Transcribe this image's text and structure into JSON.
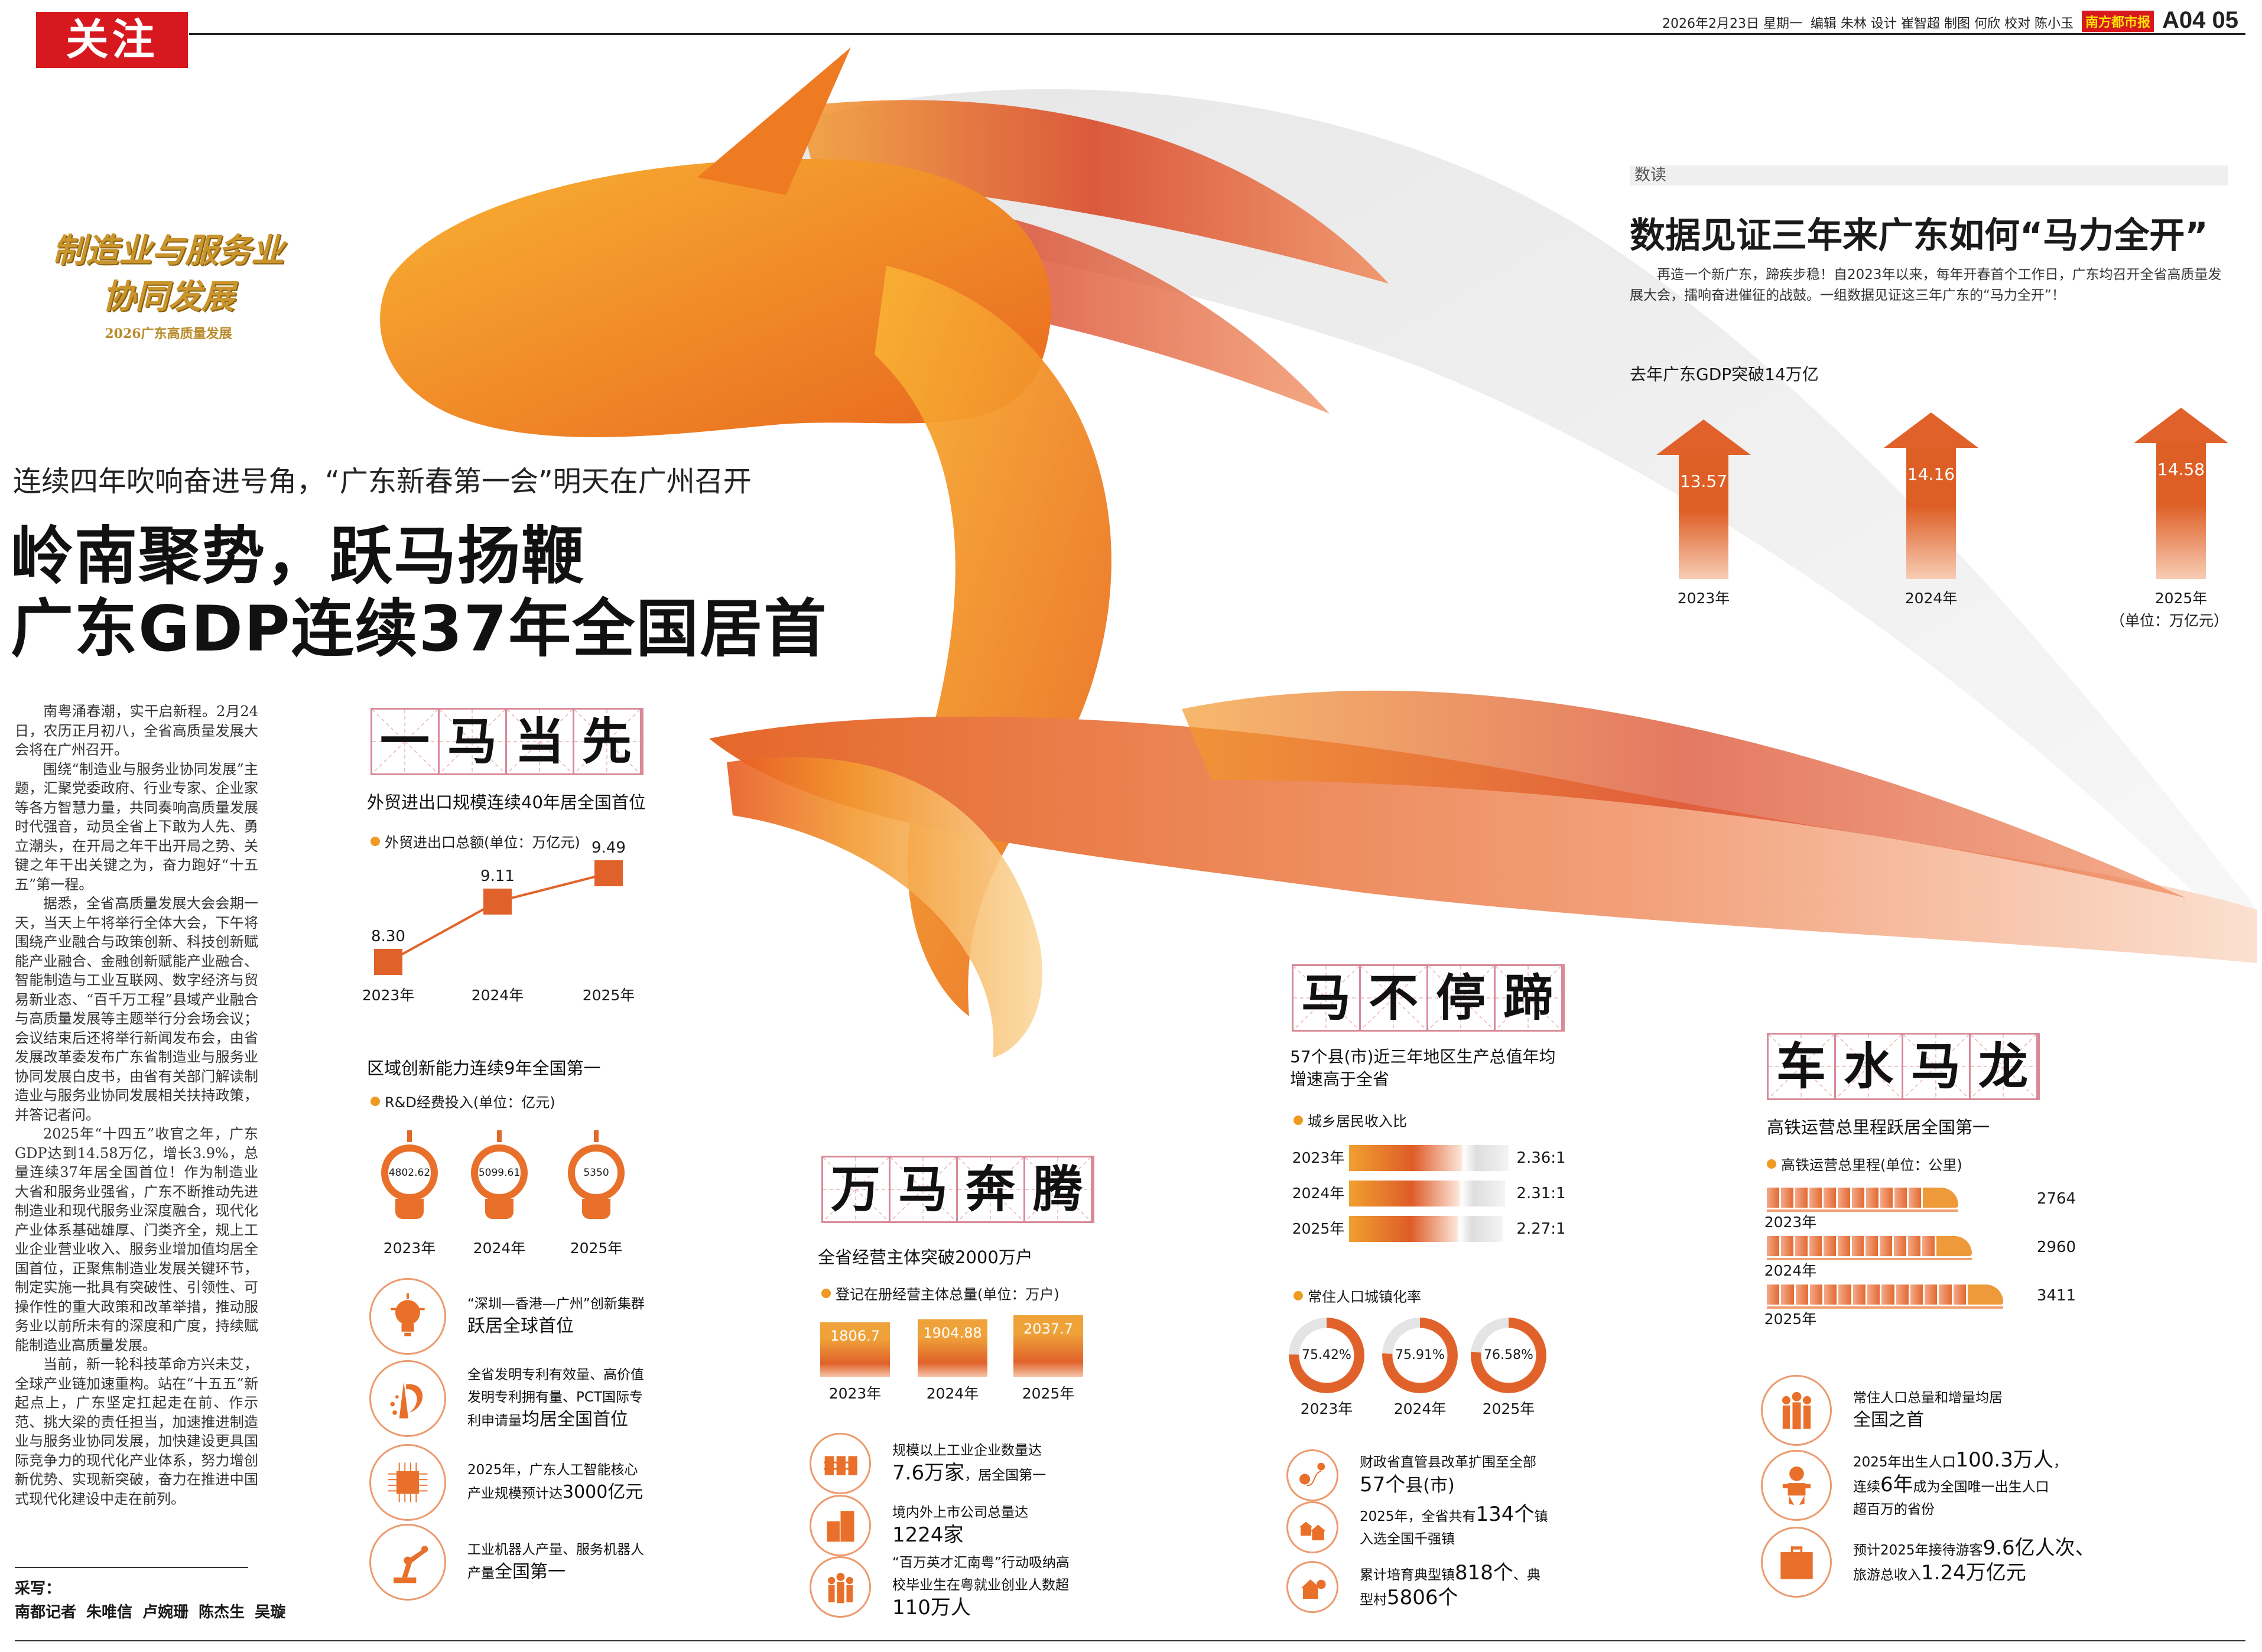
{
  "header": {
    "section_tag": "关注",
    "date": "2026年2月23日 星期一",
    "credits": "编辑 朱林 设计 崔智超 制图 何欣 校对 陈小玉",
    "paper_logo": "南方都市报",
    "page": "A04 05"
  },
  "logo": {
    "line1": "制造业与服务业",
    "line2": "协同发展",
    "sub": "2026广东高质量发展"
  },
  "headline": {
    "kicker": "连续四年吹响奋进号角，“广东新春第一会”明天在广州召开",
    "title1": "岭南聚势，跃马扬鞭",
    "title2": "广东GDP连续37年全国居首"
  },
  "article": {
    "paragraphs": [
      "南粤涌春潮，实干启新程。2月24日，农历正月初八，全省高质量发展大会将在广州召开。",
      "围绕“制造业与服务业协同发展”主题，汇聚党委政府、行业专家、企业家等各方智慧力量，共同奏响高质量发展时代强音，动员全省上下敢为人先、勇立潮头，在开局之年干出开局之势、关键之年干出关键之为，奋力跑好“十五五”第一程。",
      "据悉，全省高质量发展大会会期一天，当天上午将举行全体大会，下午将围绕产业融合与政策创新、科技创新赋能产业融合、金融创新赋能产业融合、智能制造与工业互联网、数字经济与贸易新业态、“百千万工程”县域产业融合与高质量发展等主题举行分会场会议；会议结束后还将举行新闻发布会，由省发展改革委发布广东省制造业与服务业协同发展白皮书，由省有关部门解读制造业与服务业协同发展相关扶持政策，并答记者问。",
      "2025年“十四五”收官之年，广东GDP达到14.58万亿，增长3.9%，总量连续37年居全国首位！作为制造业大省和服务业强省，广东不断推动先进制造业和现代服务业深度融合，现代化产业体系基础雄厚、门类齐全，规上工业企业营业收入、服务业增加值均居全国首位，正聚焦制造业发展关键环节，制定实施一批具有突破性、引领性、可操作性的重大政策和改革举措，推动服务业以前所未有的深度和广度，持续赋能制造业高质量发展。",
      "当前，新一轮科技革命方兴未艾，全球产业链加速重构。站在“十五五”新起点上，广东坚定扛起走在前、作示范、挑大梁的责任担当，加速推进制造业与服务业协同发展，加快建设更具国际竞争力的现代化产业体系，努力增创新优势、实现新突破，奋力在推进中国式现代化建设中走在前列。"
    ],
    "byline_label": "采写：",
    "byline": "南都记者 朱唯信 卢婉珊 陈杰生 吴璇"
  },
  "data_read": {
    "tag": "数读",
    "title": "数据见证三年来广东如何“马力全开”",
    "intro": "再造一个新广东，蹄疾步稳！自2023年以来，每年开春首个工作日，广东均召开全省高质量发展大会，擂响奋进催征的战鼓。一组数据见证这三年广东的“马力全开”！",
    "gdp": {
      "title": "去年广东GDP突破14万亿",
      "unit": "（单位：万亿元）",
      "items": [
        {
          "year": "2023年",
          "value": "13.57"
        },
        {
          "year": "2024年",
          "value": "14.16"
        },
        {
          "year": "2025年",
          "value": "14.58"
        }
      ]
    }
  },
  "colors": {
    "accent": "#e0622a",
    "orange": "#ee9a22",
    "red": "#d7191f",
    "grid": "#d88a98",
    "grey": "#dcdcdc"
  },
  "sections": {
    "yimadangxian": {
      "heading": "一马当先",
      "subtitle": "外贸进出口规模连续40年居全国首位",
      "legend": "外贸进出口总额(单位：万亿元)",
      "points": [
        {
          "year": "2023年",
          "value": "8.30"
        },
        {
          "year": "2024年",
          "value": "9.11"
        },
        {
          "year": "2025年",
          "value": "9.49"
        }
      ],
      "subtitle2": "区域创新能力连续9年全国第一",
      "legend2": "R&D经费投入(单位：亿元)",
      "bulbs": [
        {
          "year": "2023年",
          "value": "4802.62"
        },
        {
          "year": "2024年",
          "value": "5099.61"
        },
        {
          "year": "2025年",
          "value": "5350"
        }
      ],
      "list": [
        {
          "icon": "lightbulb",
          "segs": [
            {
              "t": "“深圳—香港—广州”创新集群\n",
              "s": "n"
            },
            {
              "t": "跃居全球首位",
              "s": "b"
            }
          ]
        },
        {
          "icon": "patent",
          "segs": [
            {
              "t": "全省发明专利有效量、高价值\n发明专利拥有量、PCT国际专\n利申请量",
              "s": "n"
            },
            {
              "t": "均居全国首位",
              "s": "b"
            }
          ]
        },
        {
          "icon": "ai-chip",
          "segs": [
            {
              "t": "2025年，广东人工智能核心\n产业规模预计达",
              "s": "n"
            },
            {
              "t": "3000亿元",
              "s": "b"
            }
          ]
        },
        {
          "icon": "robot-arm",
          "segs": [
            {
              "t": "工业机器人产量、服务机器人\n产量",
              "s": "n"
            },
            {
              "t": "全国第一",
              "s": "b"
            }
          ]
        }
      ]
    },
    "wanmabenteng": {
      "heading": "万马奔腾",
      "subtitle": "全省经营主体突破2000万户",
      "legend": "登记在册经营主体总量(单位：万户)",
      "bars": [
        {
          "year": "2023年",
          "value": "1806.7"
        },
        {
          "year": "2024年",
          "value": "1904.88"
        },
        {
          "year": "2025年",
          "value": "2037.7"
        }
      ],
      "list": [
        {
          "icon": "factory",
          "segs": [
            {
              "t": "规模以上工业企业数量达\n",
              "s": "n"
            },
            {
              "t": "7.6万家",
              "s": "x"
            },
            {
              "t": "，居全国第一",
              "s": "n"
            }
          ]
        },
        {
          "icon": "buildings",
          "segs": [
            {
              "t": "境内外上市公司总量达\n",
              "s": "n"
            },
            {
              "t": "1224家",
              "s": "x"
            }
          ]
        },
        {
          "icon": "people",
          "segs": [
            {
              "t": "“百万英才汇南粤”行动吸纳高\n校毕业生在粤就业创业人数超\n",
              "s": "n"
            },
            {
              "t": "110万人",
              "s": "x"
            }
          ]
        }
      ]
    },
    "mabutingti": {
      "heading": "马不停蹄",
      "subtitle": "57个县(市)近三年地区生产总值年均\n增速高于全省",
      "legend": "城乡居民收入比",
      "ratios": [
        {
          "year": "2023年",
          "value": "2.36:1"
        },
        {
          "year": "2024年",
          "value": "2.31:1"
        },
        {
          "year": "2025年",
          "value": "2.27:1"
        }
      ],
      "legend2": "常住人口城镇化率",
      "donuts": [
        {
          "year": "2023年",
          "value": "75.42%"
        },
        {
          "year": "2024年",
          "value": "75.91%"
        },
        {
          "year": "2025年",
          "value": "76.58%"
        }
      ],
      "list": [
        {
          "icon": "map-route",
          "segs": [
            {
              "t": "财政省直管县改革扩围至全部\n",
              "s": "n"
            },
            {
              "t": "57个",
              "s": "x"
            },
            {
              "t": "县(市)",
              "s": "b"
            }
          ]
        },
        {
          "icon": "houses",
          "segs": [
            {
              "t": "2025年，全省共有",
              "s": "n"
            },
            {
              "t": "134个",
              "s": "x"
            },
            {
              "t": "镇\n入选全国千强镇",
              "s": "n"
            }
          ]
        },
        {
          "icon": "village-house",
          "segs": [
            {
              "t": "累计培育典型镇",
              "s": "n"
            },
            {
              "t": "818个",
              "s": "x"
            },
            {
              "t": "、典\n型村",
              "s": "n"
            },
            {
              "t": "5806个",
              "s": "x"
            }
          ]
        }
      ]
    },
    "cheshuimalong": {
      "heading": "车水马龙",
      "subtitle": "高铁运营总里程跃居全国第一",
      "legend": "高铁运营总里程(单位：公里)",
      "trains": [
        {
          "year": "2023年",
          "value": "2764"
        },
        {
          "year": "2024年",
          "value": "2960"
        },
        {
          "year": "2025年",
          "value": "3411"
        }
      ],
      "list": [
        {
          "icon": "family",
          "segs": [
            {
              "t": "常住人口总量和增量均居\n",
              "s": "n"
            },
            {
              "t": "全国之首",
              "s": "b"
            }
          ]
        },
        {
          "icon": "baby",
          "segs": [
            {
              "t": "2025年出生人口",
              "s": "n"
            },
            {
              "t": "100.3万人",
              "s": "x"
            },
            {
              "t": "，\n连续",
              "s": "n"
            },
            {
              "t": "6年",
              "s": "x"
            },
            {
              "t": "成为全国唯一出生人口\n超百万的省份",
              "s": "n"
            }
          ]
        },
        {
          "icon": "suitcase",
          "segs": [
            {
              "t": "预计2025年接待游客",
              "s": "n"
            },
            {
              "t": "9.6亿人次、",
              "s": "x"
            },
            {
              "t": "\n旅游总收入",
              "s": "n"
            },
            {
              "t": "1.24万亿元",
              "s": "x"
            }
          ]
        }
      ]
    }
  }
}
